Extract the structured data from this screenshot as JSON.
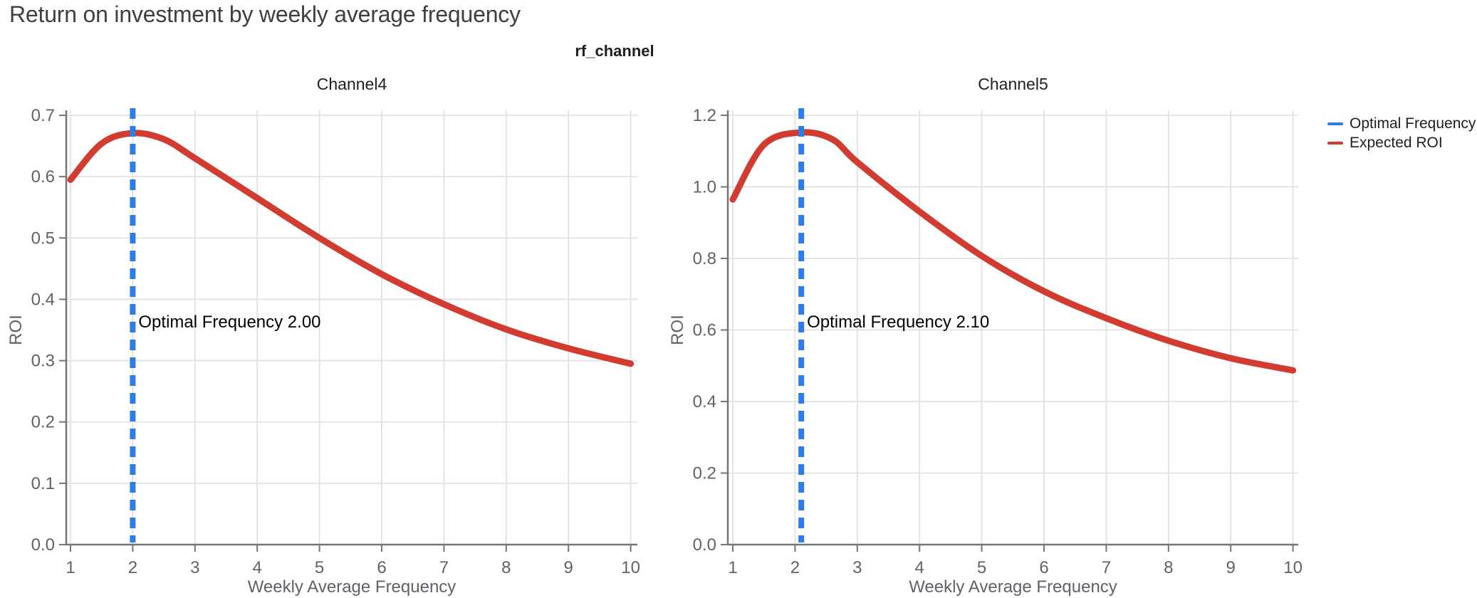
{
  "page_title": "Return on investment by weekly average frequency",
  "facet_title": "rf_channel",
  "legend": {
    "items": [
      {
        "label": "Optimal Frequency",
        "color": "#2E7CE6",
        "style": "line"
      },
      {
        "label": "Expected ROI",
        "color": "#D23B2F",
        "style": "line"
      }
    ]
  },
  "colors": {
    "expected_roi": "#D23B2F",
    "optimal_frequency": "#2E7CE6",
    "grid": "#E2E2E2",
    "axis": "#757575",
    "tick_label": "#5F6368",
    "page_title": "#3C4043",
    "text": "#1F1F1F",
    "annotation": "#000000"
  },
  "chart_data": [
    {
      "type": "line",
      "title": "Channel4",
      "xlabel": "Weekly Average Frequency",
      "ylabel": "ROI",
      "grid": true,
      "xlim": [
        1,
        10
      ],
      "ylim": [
        0,
        0.7
      ],
      "xticks": [
        1,
        2,
        3,
        4,
        5,
        6,
        7,
        8,
        9,
        10
      ],
      "ytick_labels": [
        "0.0",
        "0.1",
        "0.2",
        "0.3",
        "0.4",
        "0.5",
        "0.6",
        "0.7"
      ],
      "optimal_frequency": 2.0,
      "annotation": "Optimal Frequency  2.00",
      "series": [
        {
          "name": "Expected ROI",
          "x": [
            1,
            1.5,
            2,
            2.5,
            3,
            4,
            5,
            6,
            7,
            8,
            9,
            10
          ],
          "y": [
            0.595,
            0.654,
            0.671,
            0.661,
            0.63,
            0.565,
            0.5,
            0.441,
            0.392,
            0.351,
            0.32,
            0.295
          ]
        }
      ]
    },
    {
      "type": "line",
      "title": "Channel5",
      "xlabel": "Weekly Average Frequency",
      "ylabel": "ROI",
      "grid": true,
      "xlim": [
        1,
        10
      ],
      "ylim": [
        0,
        1.2
      ],
      "xticks": [
        1,
        2,
        3,
        4,
        5,
        6,
        7,
        8,
        9,
        10
      ],
      "ytick_labels": [
        "0.0",
        "0.2",
        "0.4",
        "0.6",
        "0.8",
        "1.0",
        "1.2"
      ],
      "optimal_frequency": 2.1,
      "annotation": "Optimal Frequency  2.10",
      "series": [
        {
          "name": "Expected ROI",
          "x": [
            1,
            1.5,
            2.1,
            2.6,
            3,
            4,
            5,
            6,
            7,
            8,
            9,
            10
          ],
          "y": [
            0.965,
            1.118,
            1.152,
            1.133,
            1.069,
            0.931,
            0.807,
            0.708,
            0.633,
            0.57,
            0.521,
            0.487
          ]
        }
      ]
    }
  ]
}
